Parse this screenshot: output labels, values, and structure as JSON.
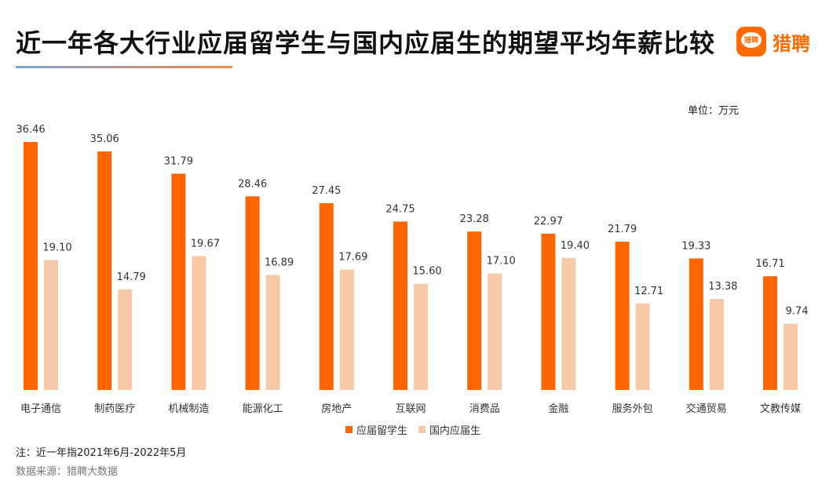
{
  "title": "近一年各大行业应届留学生与国内应届生的期望平均年薪比较",
  "logo": {
    "icon_text": "猎聘",
    "text": "猎聘"
  },
  "unit": "单位：万元",
  "note": "注：近一年指2021年6月-2022年5月",
  "source": "数据来源：猎聘大数据",
  "colors": {
    "series1": "#ff6600",
    "series2": "#f8c9a8"
  },
  "chart_data": {
    "type": "bar",
    "title": "近一年各大行业应届留学生与国内应届生的期望平均年薪比较",
    "ylabel": "单位：万元",
    "xlabel": "",
    "ylim": [
      0,
      38
    ],
    "grid": false,
    "legend_position": "bottom-center",
    "categories": [
      "电子通信",
      "制药医疗",
      "机械制造",
      "能源化工",
      "房地产",
      "互联网",
      "消费品",
      "金融",
      "服务外包",
      "交通贸易",
      "文教传媒"
    ],
    "series": [
      {
        "name": "应届留学生",
        "values": [
          36.46,
          35.06,
          31.79,
          28.46,
          27.45,
          24.75,
          23.28,
          22.97,
          21.79,
          19.33,
          16.71
        ],
        "labels": [
          "36.46",
          "35.06",
          "31.79",
          "28.46",
          "27.45",
          "24.75",
          "23.28",
          "22.97",
          "21.79",
          "19.33",
          "16.71"
        ]
      },
      {
        "name": "国内应届生",
        "values": [
          19.1,
          14.79,
          19.67,
          16.89,
          17.69,
          15.6,
          17.1,
          19.4,
          12.71,
          13.38,
          9.74
        ],
        "labels": [
          "19.10",
          "14.79",
          "19.67",
          "16.89",
          "17.69",
          "15.60",
          "17.10",
          "19.40",
          "12.71",
          "13.38",
          "9.74"
        ]
      }
    ]
  }
}
